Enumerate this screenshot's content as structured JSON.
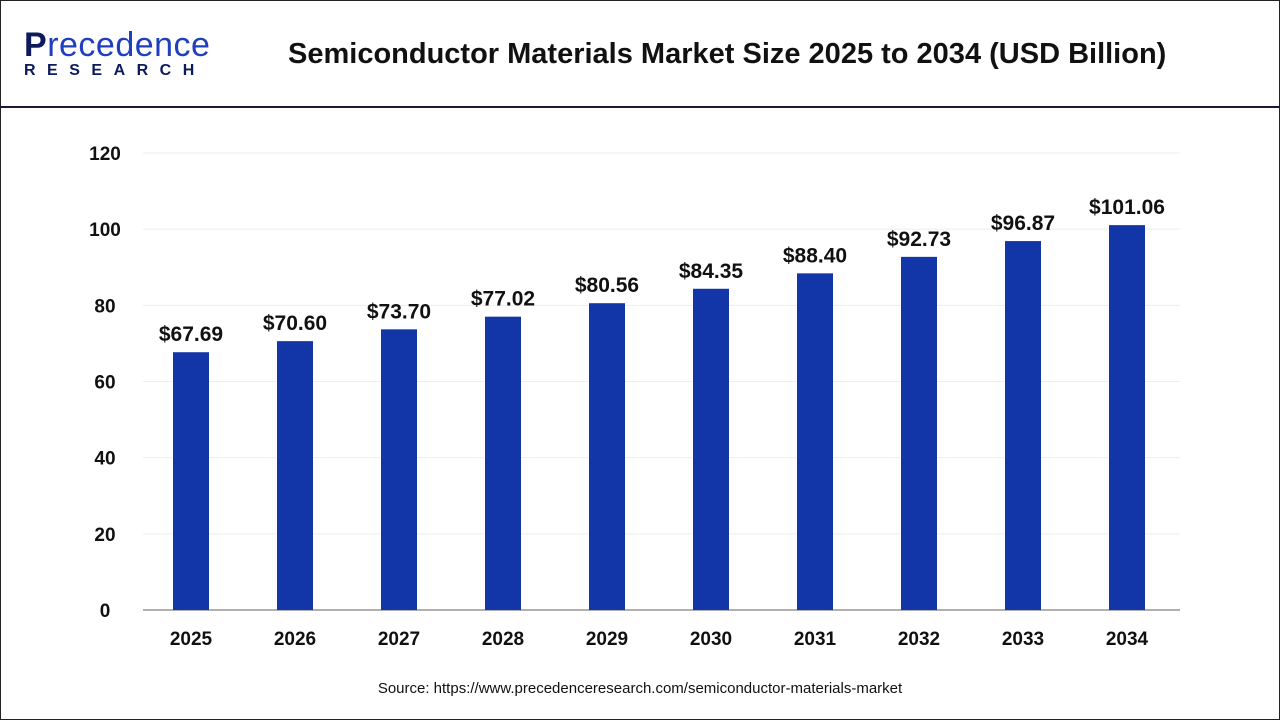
{
  "header": {
    "logo_main": "recedence",
    "logo_initial": "P",
    "logo_sub": "RESEARCH",
    "title": "Semiconductor Materials Market Size 2025 to 2034 (USD Billion)"
  },
  "source": "Source: https://www.precedenceresearch.com/semiconductor-materials-market",
  "colors": {
    "bar": "#1236a8",
    "axis": "#b0b0b0",
    "grid": "#eeeeee",
    "text": "#111111"
  },
  "chart_data": {
    "type": "bar",
    "title": "Semiconductor Materials Market Size 2025 to 2034 (USD Billion)",
    "categories": [
      "2025",
      "2026",
      "2027",
      "2028",
      "2029",
      "2030",
      "2031",
      "2032",
      "2033",
      "2034"
    ],
    "values": [
      67.69,
      70.6,
      73.7,
      77.02,
      80.56,
      84.35,
      88.4,
      92.73,
      96.87,
      101.06
    ],
    "data_labels": [
      "$67.69",
      "$70.60",
      "$73.70",
      "$77.02",
      "$80.56",
      "$84.35",
      "$88.40",
      "$92.73",
      "$96.87",
      "$101.06"
    ],
    "yticks": [
      "0",
      "20",
      "40",
      "60",
      "80",
      "100",
      "120"
    ],
    "ylim": [
      0,
      120
    ],
    "xlabel": "",
    "ylabel": "",
    "grid": true,
    "legend": "none"
  }
}
